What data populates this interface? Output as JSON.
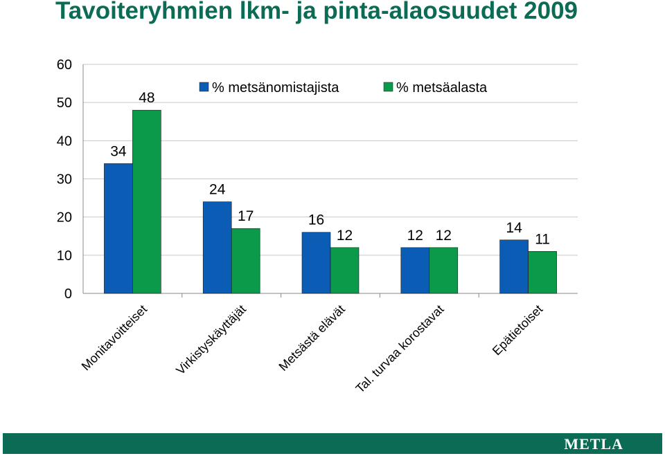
{
  "page": {
    "title": "Tavoiteryhmien lkm- ja pinta-alaosuudet 2009",
    "brand": "METLA"
  },
  "colors": {
    "title": "#0b6b55",
    "footer": "#0b6b55",
    "series": [
      "#0a5cb5",
      "#0a9a4a"
    ],
    "grid": "#c8c8c8"
  },
  "chart_data": {
    "type": "bar",
    "title": "",
    "xlabel": "",
    "ylabel": "",
    "ylim": [
      0,
      60
    ],
    "yticks": [
      0,
      10,
      20,
      30,
      40,
      50,
      60
    ],
    "grid": true,
    "legend_position": "top",
    "categories": [
      "Monitavoitteiset",
      "Virkistyskäyttäjät",
      "Metsästä elävät",
      "Tal. turvaa korostavat",
      "Epätietoiset"
    ],
    "series": [
      {
        "name": "% metsänomistajista",
        "values": [
          34,
          24,
          16,
          12,
          14
        ]
      },
      {
        "name": "% metsäalasta",
        "values": [
          48,
          17,
          12,
          12,
          11
        ]
      }
    ],
    "data_labels": true
  }
}
